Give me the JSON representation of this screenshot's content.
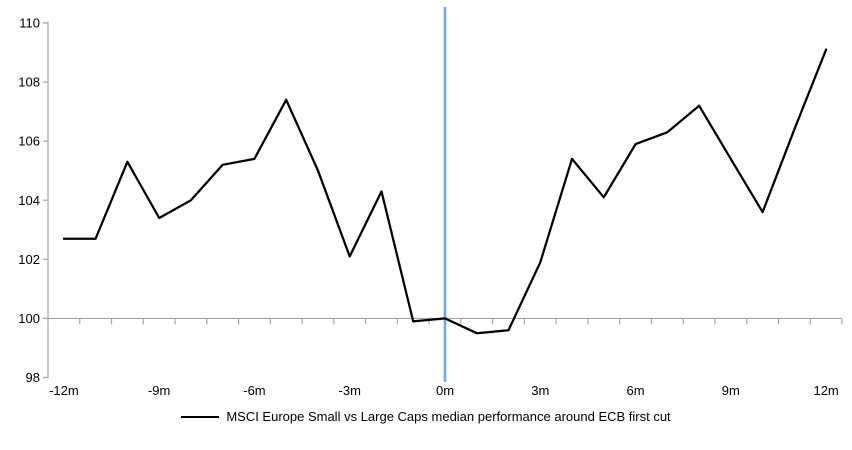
{
  "chart_data": {
    "type": "line",
    "title": "",
    "series_name": "MSCI Europe Small vs Large Caps median performance around ECB first cut",
    "months": [
      -12,
      -11,
      -10,
      -9,
      -8,
      -7,
      -6,
      -5,
      -4,
      -3,
      -2,
      -1,
      0,
      1,
      2,
      3,
      4,
      5,
      6,
      7,
      8,
      9,
      10,
      11,
      12
    ],
    "values": [
      102.7,
      102.7,
      105.3,
      103.4,
      104.0,
      105.2,
      105.4,
      107.4,
      105.0,
      102.1,
      104.3,
      99.9,
      100.0,
      99.5,
      99.6,
      101.9,
      105.4,
      104.1,
      105.9,
      106.3,
      107.2,
      105.4,
      103.6,
      106.4,
      109.1
    ],
    "xlabel_months": [
      -12,
      -9,
      -6,
      -3,
      0,
      3,
      6,
      9,
      12
    ],
    "xlabels": [
      "-12m",
      "-9m",
      "-6m",
      "-3m",
      "0m",
      "3m",
      "6m",
      "9m",
      "12m"
    ],
    "ylim": [
      98,
      110
    ],
    "yticks": [
      98,
      100,
      102,
      104,
      106,
      108,
      110
    ],
    "x_axis_cross_value": 100,
    "event_line_month": 0,
    "grid": false,
    "legend_position": "bottom-center",
    "colors": {
      "series": "#000000",
      "axis": "#a6a6a6",
      "event_line": "#6fa8dc",
      "text": "#000000",
      "background": "#ffffff"
    }
  },
  "legend": {
    "label": "MSCI Europe Small vs Large Caps median performance around ECB first cut"
  }
}
